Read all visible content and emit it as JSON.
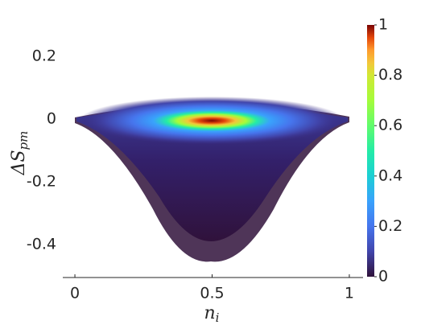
{
  "chart_data": {
    "type": "density-scatter",
    "xlabel": {
      "main": "n",
      "sub": "i"
    },
    "ylabel": {
      "main": "ΔS",
      "sub": "pm"
    },
    "xlim": [
      -0.05,
      1.05
    ],
    "xticks": [
      0,
      0.5,
      1
    ],
    "ylim": [
      -0.5,
      0.3
    ],
    "yticks": [
      -0.4,
      -0.2,
      0,
      0.2
    ],
    "colorbar": {
      "colormap": "turbo",
      "clim": [
        0,
        1
      ],
      "ticks": [
        0,
        0.2,
        0.4,
        0.6,
        0.8,
        1
      ]
    }
  }
}
